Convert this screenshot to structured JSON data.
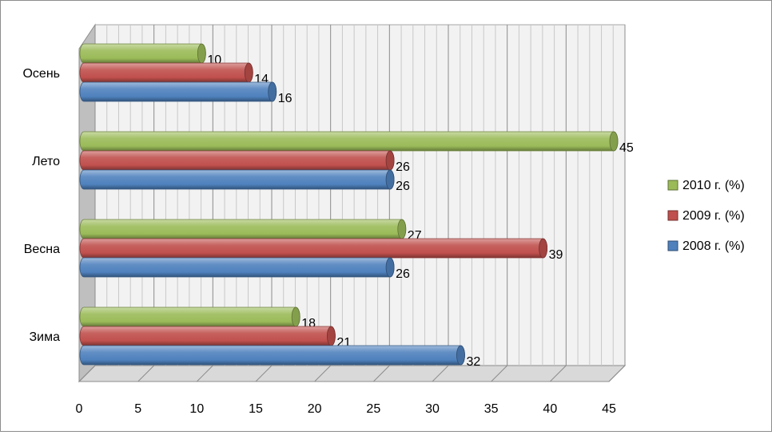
{
  "chart_data": {
    "type": "bar",
    "orientation": "horizontal",
    "style": "3d-cylinder",
    "categories": [
      "Осень",
      "Лето",
      "Весна",
      "Зима"
    ],
    "series": [
      {
        "name": "2010 г. (%)",
        "color": "#9bbb59",
        "values": [
          10,
          45,
          27,
          18
        ]
      },
      {
        "name": "2009 г. (%)",
        "color": "#c0504d",
        "values": [
          14,
          26,
          39,
          21
        ]
      },
      {
        "name": "2008 г. (%)",
        "color": "#4f81bd",
        "values": [
          16,
          26,
          26,
          32
        ]
      }
    ],
    "x_ticks": [
      "0",
      "5",
      "10",
      "15",
      "20",
      "25",
      "30",
      "35",
      "40",
      "45"
    ],
    "xlim": [
      0,
      45
    ],
    "grid": true,
    "legend_position": "right",
    "data_labels": true
  }
}
